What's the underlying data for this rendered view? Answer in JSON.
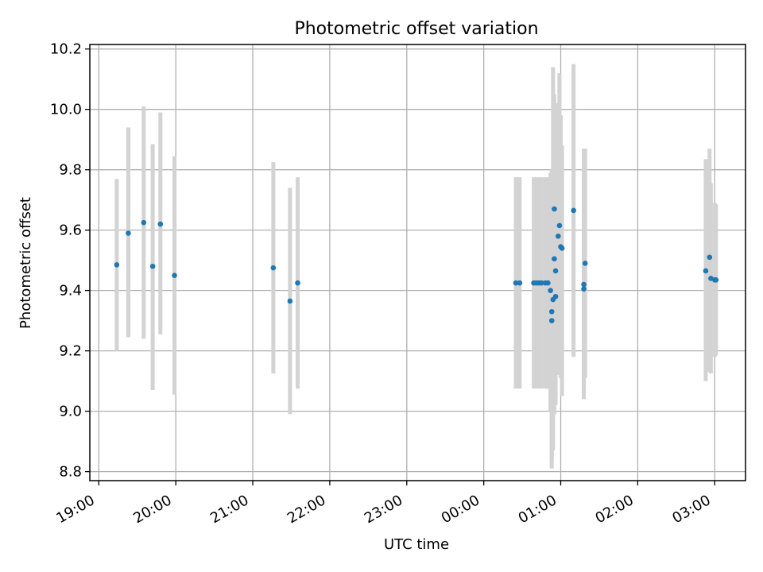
{
  "chart_data": {
    "type": "scatter",
    "title": "Photometric offset variation",
    "xlabel": "UTC time",
    "ylabel": "Photometric offset",
    "x_axis_kind": "time",
    "xlim": [
      "18:53",
      "03:24"
    ],
    "ylim": [
      8.77,
      10.215
    ],
    "grid": true,
    "x_ticks": [
      {
        "t": "19:00",
        "label": "19:00"
      },
      {
        "t": "20:00",
        "label": "20:00"
      },
      {
        "t": "21:00",
        "label": "21:00"
      },
      {
        "t": "22:00",
        "label": "22:00"
      },
      {
        "t": "23:00",
        "label": "23:00"
      },
      {
        "t": "00:00",
        "label": "00:00"
      },
      {
        "t": "01:00",
        "label": "01:00"
      },
      {
        "t": "02:00",
        "label": "02:00"
      },
      {
        "t": "03:00",
        "label": "03:00"
      }
    ],
    "y_ticks": [
      8.8,
      9.0,
      9.2,
      9.4,
      9.6,
      9.8,
      10.0,
      10.2
    ],
    "y_tick_labels": [
      "8.8",
      "9.0",
      "9.2",
      "9.4",
      "9.6",
      "9.8",
      "10.0",
      "10.2"
    ],
    "point_color": "#1f77b4",
    "errorbar_color": "#d3d3d3",
    "points": [
      {
        "t": "19:14",
        "y": 9.485,
        "lo": 9.2,
        "hi": 9.77
      },
      {
        "t": "19:23",
        "y": 9.59,
        "lo": 9.245,
        "hi": 9.94
      },
      {
        "t": "19:35",
        "y": 9.625,
        "lo": 9.24,
        "hi": 10.01
      },
      {
        "t": "19:42",
        "y": 9.48,
        "lo": 9.07,
        "hi": 9.885
      },
      {
        "t": "19:48",
        "y": 9.62,
        "lo": 9.255,
        "hi": 9.99
      },
      {
        "t": "19:59",
        "y": 9.45,
        "lo": 9.055,
        "hi": 9.845
      },
      {
        "t": "21:16",
        "y": 9.475,
        "lo": 9.125,
        "hi": 9.825
      },
      {
        "t": "21:29",
        "y": 9.365,
        "lo": 8.99,
        "hi": 9.74
      },
      {
        "t": "21:35",
        "y": 9.425,
        "lo": 9.075,
        "hi": 9.775
      },
      {
        "t": "00:25",
        "y": 9.425,
        "lo": 9.075,
        "hi": 9.775
      },
      {
        "t": "00:28",
        "y": 9.425,
        "lo": 9.075,
        "hi": 9.775
      },
      {
        "t": "00:39",
        "y": 9.425,
        "lo": 9.075,
        "hi": 9.775
      },
      {
        "t": "00:41",
        "y": 9.425,
        "lo": 9.075,
        "hi": 9.775
      },
      {
        "t": "00:43",
        "y": 9.425,
        "lo": 9.075,
        "hi": 9.775
      },
      {
        "t": "00:45",
        "y": 9.425,
        "lo": 9.075,
        "hi": 9.775
      },
      {
        "t": "00:48",
        "y": 9.425,
        "lo": 9.075,
        "hi": 9.775
      },
      {
        "t": "00:50",
        "y": 9.425,
        "lo": 9.075,
        "hi": 9.775
      },
      {
        "t": "00:52",
        "y": 9.4,
        "lo": 9.0,
        "hi": 9.79
      },
      {
        "t": "00:53",
        "y": 9.33,
        "lo": 8.81,
        "hi": 9.8
      },
      {
        "t": "00:53",
        "y": 9.3,
        "lo": 8.84,
        "hi": 9.76
      },
      {
        "t": "00:54",
        "y": 9.37,
        "lo": 8.87,
        "hi": 10.14
      },
      {
        "t": "00:55",
        "y": 9.505,
        "lo": 8.99,
        "hi": 9.96
      },
      {
        "t": "00:55",
        "y": 9.67,
        "lo": 9.1,
        "hi": 10.05
      },
      {
        "t": "00:56",
        "y": 9.38,
        "lo": 9.02,
        "hi": 9.93
      },
      {
        "t": "00:56",
        "y": 9.465,
        "lo": 9.05,
        "hi": 9.95
      },
      {
        "t": "00:58",
        "y": 9.58,
        "lo": 9.12,
        "hi": 10.02
      },
      {
        "t": "00:59",
        "y": 9.615,
        "lo": 9.14,
        "hi": 10.12
      },
      {
        "t": "01:00",
        "y": 9.545,
        "lo": 9.11,
        "hi": 9.98
      },
      {
        "t": "01:01",
        "y": 9.54,
        "lo": 9.05,
        "hi": 9.88
      },
      {
        "t": "01:10",
        "y": 9.665,
        "lo": 9.18,
        "hi": 10.15
      },
      {
        "t": "01:18",
        "y": 9.42,
        "lo": 9.04,
        "hi": 9.87
      },
      {
        "t": "01:18",
        "y": 9.405,
        "lo": 9.04,
        "hi": 9.77
      },
      {
        "t": "01:19",
        "y": 9.49,
        "lo": 9.11,
        "hi": 9.87
      },
      {
        "t": "02:53",
        "y": 9.465,
        "lo": 9.1,
        "hi": 9.835
      },
      {
        "t": "02:56",
        "y": 9.51,
        "lo": 9.13,
        "hi": 9.87
      },
      {
        "t": "02:57",
        "y": 9.44,
        "lo": 9.125,
        "hi": 9.755
      },
      {
        "t": "03:00",
        "y": 9.435,
        "lo": 9.18,
        "hi": 9.69
      },
      {
        "t": "03:01",
        "y": 9.435,
        "lo": 9.185,
        "hi": 9.685
      }
    ]
  }
}
